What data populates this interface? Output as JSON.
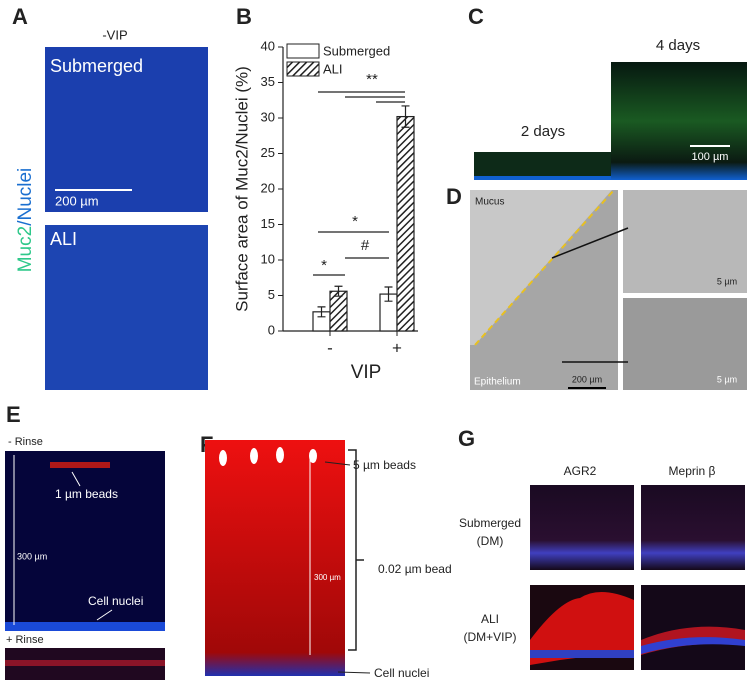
{
  "panels": {
    "labels": [
      "A",
      "B",
      "C",
      "D",
      "E",
      "F",
      "G"
    ]
  },
  "panel_a": {
    "header": "-VIP",
    "y_label_green": "Muc2",
    "y_label_blue": "/Nuclei",
    "top": "Submerged",
    "bottom": "ALI",
    "scale": "200 µm"
  },
  "chart_data": {
    "type": "bar",
    "y_label": "Surface area of Muc2/Nuclei (%)",
    "x_label": "VIP",
    "categories": [
      "-",
      "+"
    ],
    "series": [
      {
        "name": "Submerged",
        "color": "#ffffff",
        "values": [
          2.7,
          5.2
        ],
        "errors": [
          0.7,
          1.0
        ]
      },
      {
        "name": "ALI",
        "color": "hatched",
        "values": [
          5.6,
          30.2
        ],
        "errors": [
          0.7,
          1.5
        ]
      }
    ],
    "ylim": [
      0,
      40
    ],
    "yticks": [
      0,
      5,
      10,
      15,
      20,
      25,
      30,
      35,
      40
    ],
    "legend": "upper left",
    "annotations": [
      "*",
      "#",
      "*",
      "**"
    ]
  },
  "panel_c": {
    "left": "2 days",
    "right": "4 days",
    "scale": "100 µm"
  },
  "panel_d": {
    "top_label": "Mucus",
    "bottom_label": "Epithelium",
    "scale_main": "200 µm",
    "scale_top": "5 µm",
    "scale_bottom": "5 µm"
  },
  "panel_e": {
    "top_label": "- Rinse",
    "beads": "1 µm beads",
    "scale": "300 µm",
    "nuclei": "Cell nuclei",
    "bottom_label": "+ Rinse"
  },
  "panel_f": {
    "beads": "5 µm beads",
    "bead_small": "0.02 µm bead",
    "scale": "300 µm",
    "nuclei": "Cell nuclei"
  },
  "panel_g": {
    "col1": "AGR2",
    "col2": "Meprin β",
    "row1_line1": "Submerged",
    "row1_line2": "(DM)",
    "row2_line1": "ALI",
    "row2_line2": "(DM+VIP)"
  }
}
